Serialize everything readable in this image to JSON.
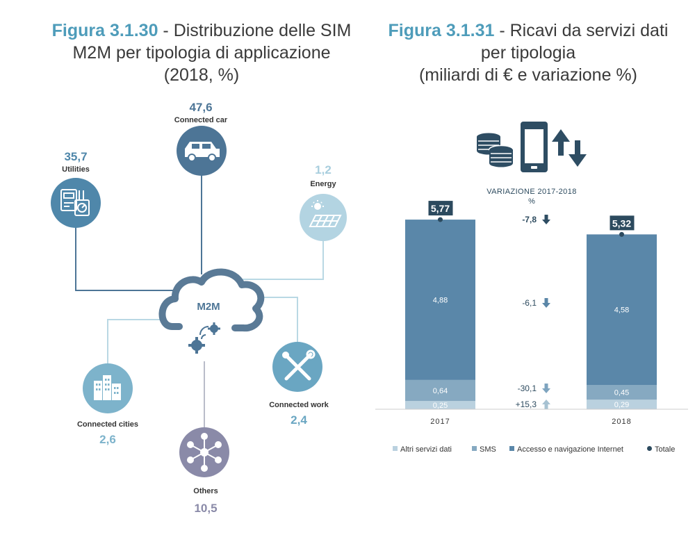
{
  "left_figure": {
    "number": "Figura 3.1.30",
    "title_rest": " - Distribuzione delle SIM",
    "title_line2": "M2M per tipologia di applicazione",
    "title_line3": "(2018, %)",
    "center_label": "M2M",
    "colors": {
      "dark": "#4d7596",
      "mid": "#5f9cb7",
      "light": "#b3d4e2",
      "purple": "#8a8aa8",
      "line": "#b9d8e4",
      "line_dark": "#4d7596"
    }
  },
  "right_figure": {
    "number": "Figura 3.1.31",
    "title_line1_rest": " - Ricavi da servizi dati",
    "title_line2": "per tipologia",
    "title_line3": "(miliardi di € e variazione %)",
    "variation_header": "VARIAZIONE 2017-2018",
    "variation_unit": "%",
    "variations": [
      {
        "value": "-7,8",
        "direction": "down",
        "color": "#2e4d63"
      },
      {
        "value": "-6,1",
        "direction": "down",
        "color": "#5b87a8"
      },
      {
        "value": "-30,1",
        "direction": "down",
        "color": "#7ea4bf"
      },
      {
        "value": "+15,3",
        "direction": "up",
        "color": "#a7c2d2"
      }
    ]
  },
  "chart_data": [
    {
      "type": "pie",
      "title": "Distribuzione delle SIM M2M per tipologia di applicazione (2018, %)",
      "categories": [
        "Connected car",
        "Utilities",
        "Energy",
        "Connected work",
        "Others",
        "Connected cities"
      ],
      "values": [
        47.6,
        35.7,
        1.2,
        2.4,
        10.5,
        2.6
      ],
      "value_labels": [
        "47,6",
        "35,7",
        "1,2",
        "2,4",
        "10,5",
        "2,6"
      ],
      "icons": [
        "car-icon",
        "meter-icon",
        "solar-panel-icon",
        "tools-icon",
        "network-icon",
        "buildings-icon"
      ],
      "colors": [
        "#4d7596",
        "#4f87aa",
        "#b3d4e2",
        "#6aa6c2",
        "#8a8aa8",
        "#7db3cb"
      ]
    },
    {
      "type": "bar",
      "stacked": true,
      "title": "Ricavi da servizi dati per tipologia (miliardi di € e variazione %)",
      "categories": [
        "2017",
        "2018"
      ],
      "series": [
        {
          "name": "Altri servizi dati",
          "values": [
            0.25,
            0.29
          ],
          "labels": [
            "0,25",
            "0,29"
          ],
          "color": "#bad1df"
        },
        {
          "name": "SMS",
          "values": [
            0.64,
            0.45
          ],
          "labels": [
            "0,64",
            "0,45"
          ],
          "color": "#86a9c1"
        },
        {
          "name": "Accesso e navigazione Internet",
          "values": [
            4.88,
            4.58
          ],
          "labels": [
            "4,88",
            "4,58"
          ],
          "color": "#5a87a9"
        }
      ],
      "totals": {
        "name": "Totale",
        "values": [
          5.77,
          5.32
        ],
        "labels": [
          "5,77",
          "5,32"
        ],
        "color": "#2c4a5e"
      },
      "ylim": [
        0,
        5.9
      ],
      "legend_position": "bottom"
    }
  ]
}
